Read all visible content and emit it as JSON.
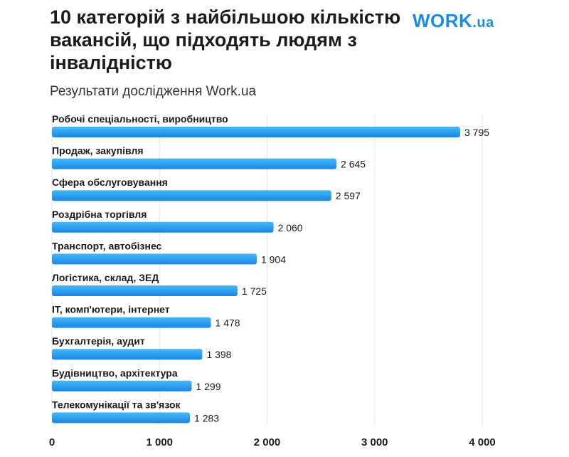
{
  "header": {
    "title": "10 категорій з найбільшою кількістю вакансій, що підходять людям з інвалідністю",
    "subtitle": "Результати дослідження Work.ua",
    "logo_word": "WORK",
    "logo_domain": ".ua"
  },
  "colors": {
    "bar_start": "#1a86e6",
    "bar_end": "#45b8f7",
    "grid": "#e3e3e3",
    "logo": "#1a8de0"
  },
  "chart_data": {
    "type": "bar",
    "orientation": "horizontal",
    "title": "10 категорій з найбільшою кількістю вакансій, що підходять людям з інвалідністю",
    "subtitle": "Результати дослідження Work.ua",
    "categories": [
      "Робочі спеціальності, виробництво",
      "Продаж, закупівля",
      "Сфера обслуговування",
      "Роздрібна торгівля",
      "Транспорт, автобізнес",
      "Логістика, склад, ЗЕД",
      "IT, комп'ютери, інтернет",
      "Бухгалтерія, аудит",
      "Будівництво, архітектура",
      "Телекомунікації та зв'язок"
    ],
    "values": [
      3795,
      2645,
      2597,
      2060,
      1904,
      1725,
      1478,
      1398,
      1299,
      1283
    ],
    "value_labels": [
      "3 795",
      "2 645",
      "2 597",
      "2 060",
      "1 904",
      "1 725",
      "1 478",
      "1 398",
      "1 299",
      "1 283"
    ],
    "xlim": [
      0,
      4000
    ],
    "xticks": [
      0,
      1000,
      2000,
      3000,
      4000
    ],
    "xtick_labels": [
      "0",
      "1 000",
      "2 000",
      "3 000",
      "4 000"
    ],
    "grid": true,
    "legend": "none"
  }
}
